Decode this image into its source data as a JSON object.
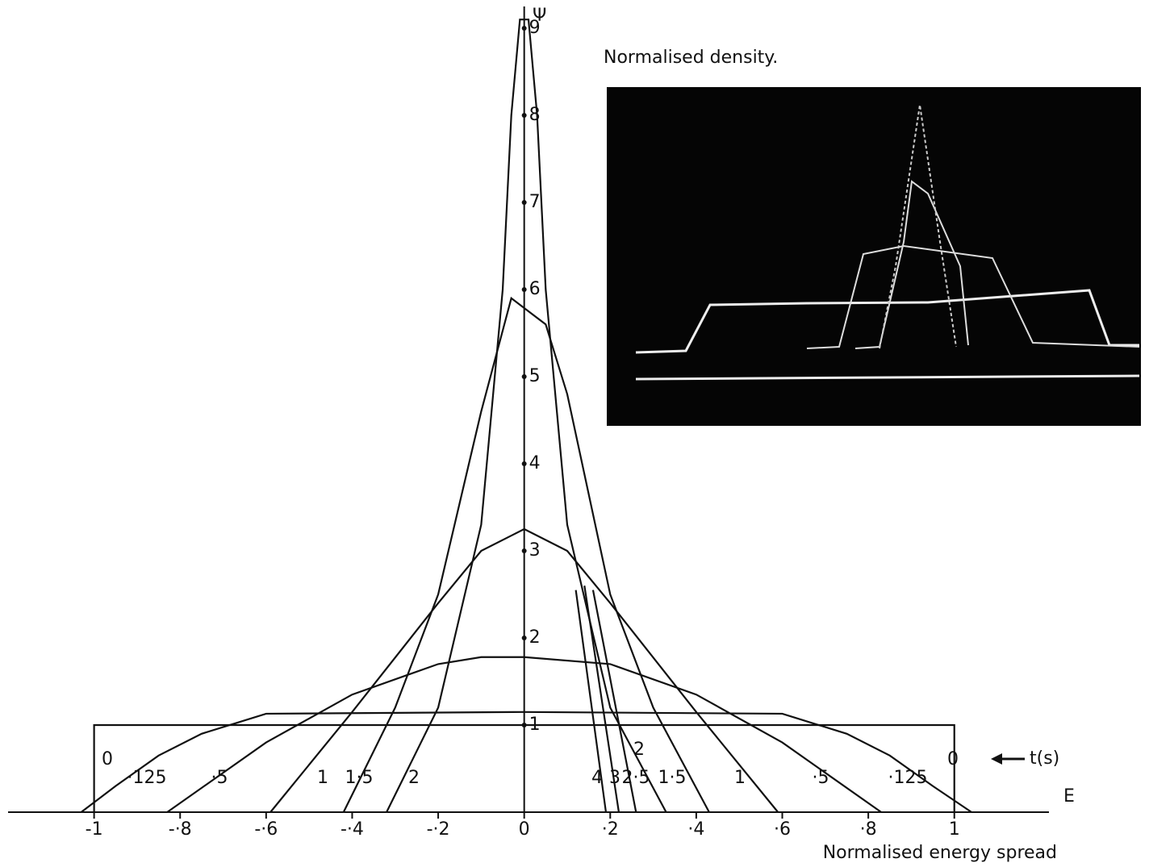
{
  "chart_data": {
    "type": "line",
    "title": "Normalised density.",
    "y_label": "Ψ",
    "x_axis_symbol": "E",
    "x_label": "Normalised energy spread",
    "legend_title": "t(s)",
    "xlim": [
      -1.2,
      1.22
    ],
    "ylim": [
      0,
      9.2
    ],
    "xticks": [
      {
        "value": -1,
        "label": "-1"
      },
      {
        "value": -0.8,
        "label": "-·8"
      },
      {
        "value": -0.6,
        "label": "-·6"
      },
      {
        "value": -0.4,
        "label": "-·4"
      },
      {
        "value": -0.2,
        "label": "-·2"
      },
      0,
      {
        "value": 0.2,
        "label": "·2"
      },
      {
        "value": 0.4,
        "label": "·4"
      },
      {
        "value": 0.6,
        "label": "·6"
      },
      {
        "value": 0.8,
        "label": "·8"
      },
      1
    ],
    "yticks": [
      1,
      2,
      3,
      4,
      5,
      6,
      7,
      8,
      9
    ],
    "color": "#111111",
    "series": [
      {
        "name": "0",
        "x": [
          -1,
          -1,
          1,
          1
        ],
        "values": [
          0,
          1,
          1,
          0
        ]
      },
      {
        "name": "·125",
        "x": [
          -1.03,
          -0.95,
          -0.85,
          -0.75,
          -0.6,
          0,
          0.6,
          0.75,
          0.85,
          0.95,
          1.04
        ],
        "values": [
          0,
          0.3,
          0.65,
          0.9,
          1.13,
          1.15,
          1.13,
          0.9,
          0.65,
          0.3,
          0
        ]
      },
      {
        "name": "·5",
        "x": [
          -0.83,
          -0.6,
          -0.4,
          -0.2,
          -0.1,
          0,
          0.2,
          0.4,
          0.6,
          0.83
        ],
        "values": [
          0,
          0.8,
          1.35,
          1.7,
          1.78,
          1.78,
          1.7,
          1.35,
          0.8,
          0
        ]
      },
      {
        "name": "1",
        "x": [
          -0.59,
          -0.4,
          -0.2,
          -0.1,
          0,
          0.1,
          0.2,
          0.4,
          0.59
        ],
        "values": [
          0,
          1.15,
          2.4,
          3.0,
          3.25,
          3.0,
          2.4,
          1.15,
          0
        ]
      },
      {
        "name": "1·5",
        "x": [
          -0.42,
          -0.3,
          -0.2,
          -0.1,
          -0.03,
          0.05,
          0.1,
          0.2,
          0.3,
          0.43
        ],
        "values": [
          0,
          1.2,
          2.5,
          4.6,
          5.9,
          5.6,
          4.8,
          2.5,
          1.2,
          0
        ]
      },
      {
        "name": "2",
        "x": [
          -0.32,
          -0.2,
          -0.1,
          -0.05,
          -0.03,
          -0.01,
          0.01,
          0.03,
          0.05,
          0.1,
          0.2,
          0.33
        ],
        "values": [
          0,
          1.2,
          3.3,
          6,
          8,
          9.1,
          9.1,
          8,
          6,
          3.3,
          1.2,
          0
        ]
      },
      {
        "name": "2·5",
        "x": [
          0.16,
          0.26
        ],
        "values": [
          2.55,
          0
        ]
      },
      {
        "name": "3",
        "x": [
          0.14,
          0.22
        ],
        "values": [
          2.6,
          0
        ]
      },
      {
        "name": "4",
        "x": [
          0.12,
          0.19
        ],
        "values": [
          2.55,
          0
        ]
      }
    ]
  }
}
